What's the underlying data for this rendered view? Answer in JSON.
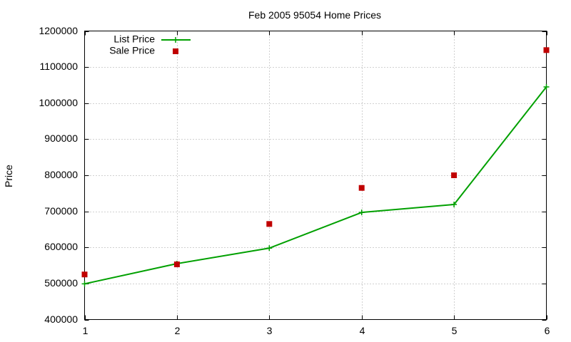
{
  "chart_data": {
    "type": "line",
    "title": "Feb 2005 95054 Home Prices",
    "xlabel": "",
    "ylabel": "Price",
    "x": [
      1,
      2,
      3,
      4,
      5,
      6
    ],
    "xlim": [
      1,
      6
    ],
    "ylim": [
      400000,
      1200000
    ],
    "y_ticks": [
      "400000",
      "500000",
      "600000",
      "700000",
      "800000",
      "900000",
      "1000000",
      "1100000",
      "1200000"
    ],
    "x_ticks": [
      "1",
      "2",
      "3",
      "4",
      "5",
      "6"
    ],
    "grid": true,
    "legend_position": "top-left",
    "series": [
      {
        "name": "List Price",
        "style": "linespoints",
        "marker": "plus",
        "color": "#00a000",
        "values": [
          499000,
          555000,
          598000,
          697000,
          719000,
          1045000
        ]
      },
      {
        "name": "Sale Price",
        "style": "points",
        "marker": "square",
        "color": "#c00000",
        "values": [
          525000,
          553000,
          665000,
          765000,
          800000,
          1147000
        ]
      }
    ]
  }
}
